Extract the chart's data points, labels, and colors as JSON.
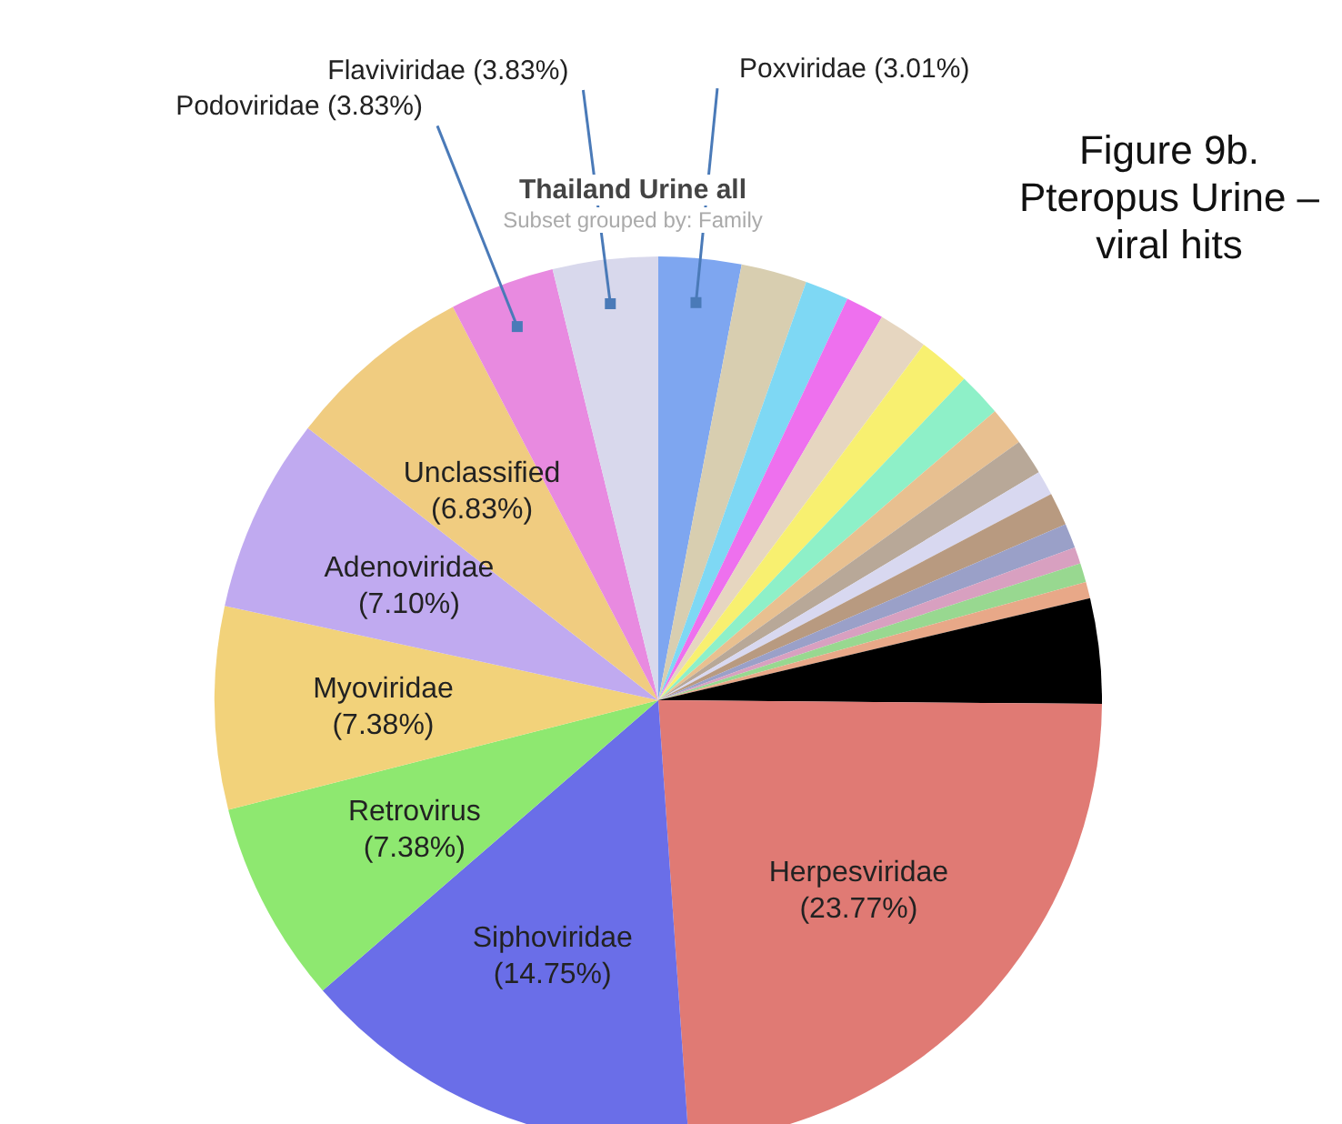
{
  "chart_data": {
    "type": "pie",
    "title": "Thailand Urine all",
    "subtitle": "Subset grouped by: Family",
    "annotations": [
      "Figure 9b. Pteropus Urine – viral hits"
    ],
    "categories": [
      "Poxviridae",
      null,
      null,
      null,
      null,
      null,
      null,
      null,
      null,
      null,
      null,
      null,
      null,
      null,
      null,
      null,
      "Herpesviridae",
      "Siphoviridae",
      "Retrovirus",
      "Myoviridae",
      "Adenoviridae",
      "Unclassified",
      "Podoviridae",
      "Flaviviridae"
    ],
    "values": [
      3.01,
      2.4,
      1.6,
      1.4,
      1.8,
      1.9,
      1.6,
      1.4,
      1.3,
      0.9,
      1.2,
      0.9,
      0.6,
      0.7,
      0.6,
      3.82,
      23.77,
      14.75,
      7.38,
      7.38,
      7.1,
      6.83,
      3.83,
      3.83
    ],
    "colors": [
      "#7ea6f0",
      "#d8ceb0",
      "#7ed8f4",
      "#ee70ee",
      "#e6d6c0",
      "#f8f070",
      "#8ef0c8",
      "#e8c090",
      "#b8a898",
      "#d8d8f0",
      "#b89a80",
      "#9aa0c8",
      "#d8a0c0",
      "#98d890",
      "#e8a888",
      "#000000",
      "#e07a74",
      "#6a6ee8",
      "#8ee870",
      "#f2d27a",
      "#c0aaf0",
      "#f0cc80",
      "#e88ae0",
      "#d8d8ec"
    ],
    "value_labels": [
      "(3.01%)",
      null,
      null,
      null,
      null,
      null,
      null,
      null,
      null,
      null,
      null,
      null,
      null,
      null,
      null,
      null,
      "(23.77%)",
      "(14.75%)",
      "(7.38%)",
      "(7.38%)",
      "(7.10%)",
      "(6.83%)",
      "(3.83%)",
      "(3.83%)"
    ]
  }
}
